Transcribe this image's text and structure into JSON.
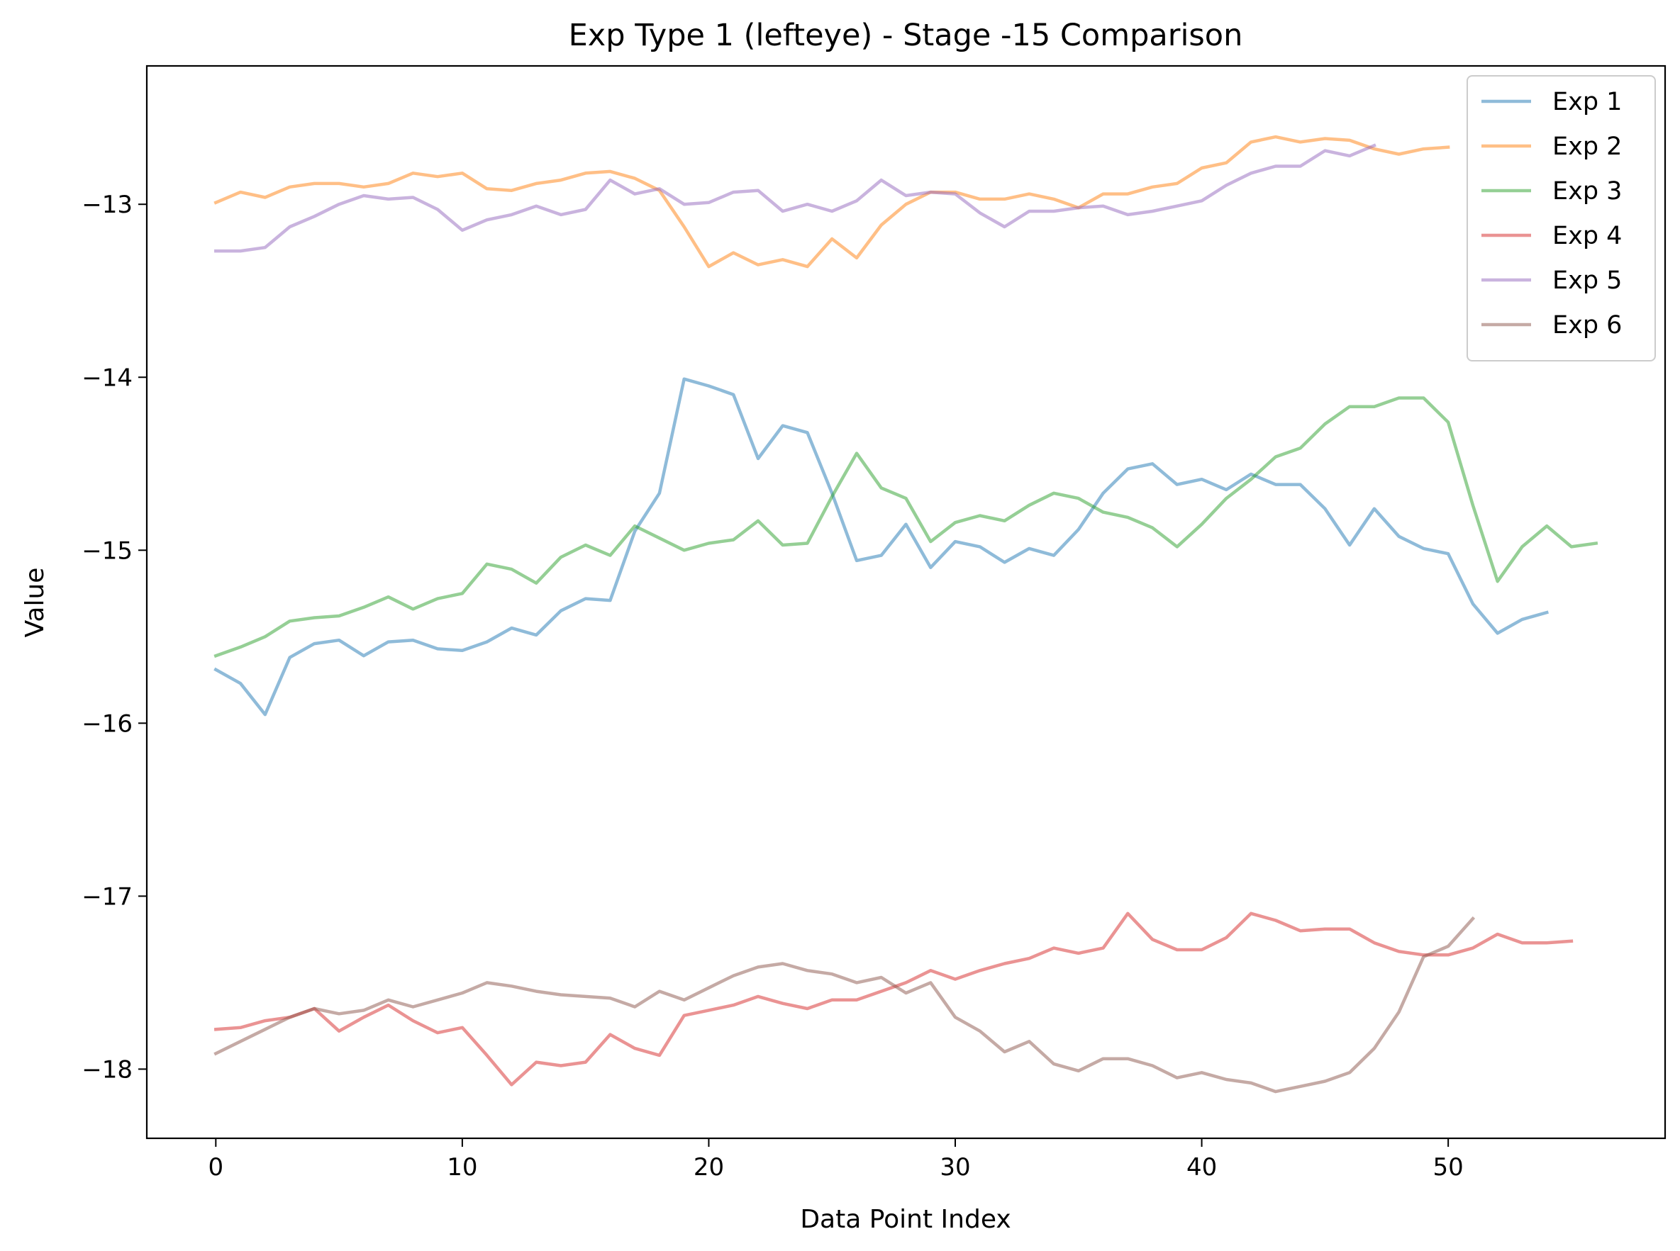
{
  "chart_data": {
    "type": "line",
    "title": "Exp Type 1 (lefteye) - Stage -15 Comparison",
    "xlabel": "Data Point Index",
    "ylabel": "Value",
    "xlim": [
      -2.8,
      58.8
    ],
    "ylim": [
      -18.4,
      -12.2
    ],
    "xticks": [
      0,
      10,
      20,
      30,
      40,
      50
    ],
    "xtick_labels": [
      "0",
      "10",
      "20",
      "30",
      "40",
      "50"
    ],
    "yticks": [
      -13,
      -14,
      -15,
      -16,
      -17,
      -18
    ],
    "ytick_labels": [
      "−13",
      "−14",
      "−15",
      "−16",
      "−17",
      "−18"
    ],
    "grid": false,
    "legend_position": "top-right",
    "series": [
      {
        "name": "Exp 1",
        "color": "#1f77b4",
        "values": [
          -15.69,
          -15.77,
          -15.95,
          -15.62,
          -15.54,
          -15.52,
          -15.61,
          -15.53,
          -15.52,
          -15.57,
          -15.58,
          -15.53,
          -15.45,
          -15.49,
          -15.35,
          -15.28,
          -15.29,
          -14.89,
          -14.67,
          -14.01,
          -14.05,
          -14.1,
          -14.47,
          -14.28,
          -14.32,
          -14.67,
          -15.06,
          -15.03,
          -14.85,
          -15.1,
          -14.95,
          -14.98,
          -15.07,
          -14.99,
          -15.03,
          -14.88,
          -14.67,
          -14.53,
          -14.5,
          -14.62,
          -14.59,
          -14.65,
          -14.56,
          -14.62,
          -14.62,
          -14.76,
          -14.97,
          -14.76,
          -14.92,
          -14.99,
          -15.02,
          -15.31,
          -15.48,
          -15.4,
          -15.36
        ]
      },
      {
        "name": "Exp 2",
        "color": "#ff7f0e",
        "values": [
          -12.99,
          -12.93,
          -12.96,
          -12.9,
          -12.88,
          -12.88,
          -12.9,
          -12.88,
          -12.82,
          -12.84,
          -12.82,
          -12.91,
          -12.92,
          -12.88,
          -12.86,
          -12.82,
          -12.81,
          -12.85,
          -12.92,
          -13.13,
          -13.36,
          -13.28,
          -13.35,
          -13.32,
          -13.36,
          -13.2,
          -13.31,
          -13.12,
          -13.0,
          -12.93,
          -12.93,
          -12.97,
          -12.97,
          -12.94,
          -12.97,
          -13.02,
          -12.94,
          -12.94,
          -12.9,
          -12.88,
          -12.79,
          -12.76,
          -12.64,
          -12.61,
          -12.64,
          -12.62,
          -12.63,
          -12.68,
          -12.71,
          -12.68,
          -12.67
        ]
      },
      {
        "name": "Exp 3",
        "color": "#2ca02c",
        "values": [
          -15.61,
          -15.56,
          -15.5,
          -15.41,
          -15.39,
          -15.38,
          -15.33,
          -15.27,
          -15.34,
          -15.28,
          -15.25,
          -15.08,
          -15.11,
          -15.19,
          -15.04,
          -14.97,
          -15.03,
          -14.86,
          -14.93,
          -15.0,
          -14.96,
          -14.94,
          -14.83,
          -14.97,
          -14.96,
          -14.69,
          -14.44,
          -14.64,
          -14.7,
          -14.95,
          -14.84,
          -14.8,
          -14.83,
          -14.74,
          -14.67,
          -14.7,
          -14.78,
          -14.81,
          -14.87,
          -14.98,
          -14.85,
          -14.7,
          -14.59,
          -14.46,
          -14.41,
          -14.27,
          -14.17,
          -14.17,
          -14.12,
          -14.12,
          -14.26,
          -14.74,
          -15.18,
          -14.98,
          -14.86,
          -14.98,
          -14.96
        ]
      },
      {
        "name": "Exp 4",
        "color": "#d62728",
        "values": [
          -17.77,
          -17.76,
          -17.72,
          -17.7,
          -17.65,
          -17.78,
          -17.7,
          -17.63,
          -17.72,
          -17.79,
          -17.76,
          -17.92,
          -18.09,
          -17.96,
          -17.98,
          -17.96,
          -17.8,
          -17.88,
          -17.92,
          -17.69,
          -17.66,
          -17.63,
          -17.58,
          -17.62,
          -17.65,
          -17.6,
          -17.6,
          -17.55,
          -17.5,
          -17.43,
          -17.48,
          -17.43,
          -17.39,
          -17.36,
          -17.3,
          -17.33,
          -17.3,
          -17.1,
          -17.25,
          -17.31,
          -17.31,
          -17.24,
          -17.1,
          -17.14,
          -17.2,
          -17.19,
          -17.19,
          -17.27,
          -17.32,
          -17.34,
          -17.34,
          -17.3,
          -17.22,
          -17.27,
          -17.27,
          -17.26
        ]
      },
      {
        "name": "Exp 5",
        "color": "#9467bd",
        "values": [
          -13.27,
          -13.27,
          -13.25,
          -13.13,
          -13.07,
          -13.0,
          -12.95,
          -12.97,
          -12.96,
          -13.03,
          -13.15,
          -13.09,
          -13.06,
          -13.01,
          -13.06,
          -13.03,
          -12.86,
          -12.94,
          -12.91,
          -13.0,
          -12.99,
          -12.93,
          -12.92,
          -13.04,
          -13.0,
          -13.04,
          -12.98,
          -12.86,
          -12.95,
          -12.93,
          -12.94,
          -13.05,
          -13.13,
          -13.04,
          -13.04,
          -13.02,
          -13.01,
          -13.06,
          -13.04,
          -13.01,
          -12.98,
          -12.89,
          -12.82,
          -12.78,
          -12.78,
          -12.69,
          -12.72,
          -12.66
        ]
      },
      {
        "name": "Exp 6",
        "color": "#8c564b",
        "values": [
          -17.91,
          -17.84,
          -17.77,
          -17.7,
          -17.65,
          -17.68,
          -17.66,
          -17.6,
          -17.64,
          -17.6,
          -17.56,
          -17.5,
          -17.52,
          -17.55,
          -17.57,
          -17.58,
          -17.59,
          -17.64,
          -17.55,
          -17.6,
          -17.53,
          -17.46,
          -17.41,
          -17.39,
          -17.43,
          -17.45,
          -17.5,
          -17.47,
          -17.56,
          -17.5,
          -17.7,
          -17.78,
          -17.9,
          -17.84,
          -17.97,
          -18.01,
          -17.94,
          -17.94,
          -17.98,
          -18.05,
          -18.02,
          -18.06,
          -18.08,
          -18.13,
          -18.1,
          -18.07,
          -18.02,
          -17.88,
          -17.67,
          -17.35,
          -17.29,
          -17.13
        ]
      }
    ]
  }
}
